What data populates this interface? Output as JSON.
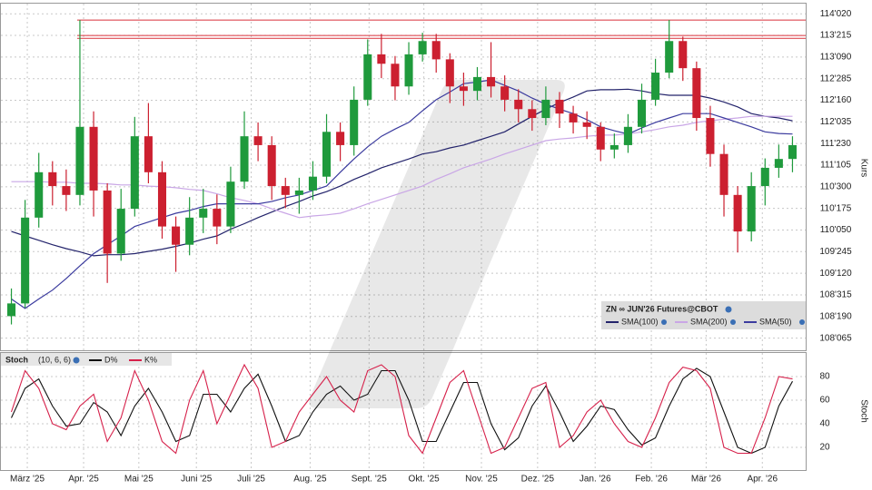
{
  "chart_data": [
    {
      "type": "candlestick",
      "legend_title": "ZN ∞ JUN'26 Futures@CBOT",
      "ylabel": "Kurs",
      "up_color": "#1f9a3c",
      "down_color": "#cc2030",
      "open": [
        108.6,
        108.83,
        110.38,
        111.2,
        110.95,
        110.79,
        112.02,
        110.87,
        109.73,
        110.54,
        111.85,
        111.2,
        110.22,
        109.89,
        110.38,
        110.54,
        110.22,
        111.03,
        111.85,
        111.69,
        110.95,
        110.79,
        110.87,
        111.12,
        111.93,
        111.69,
        112.51,
        113.33,
        113.16,
        112.75,
        113.33,
        113.57,
        113.24,
        112.75,
        112.67,
        112.92,
        112.75,
        112.51,
        112.34,
        112.18,
        112.51,
        112.26,
        112.1,
        112.02,
        111.61,
        111.69,
        112.02,
        112.51,
        113.0,
        113.57,
        113.08,
        112.18,
        111.53,
        110.79,
        110.13,
        110.95,
        111.28,
        111.44
      ],
      "high": [
        109.1,
        110.7,
        111.55,
        111.4,
        111.25,
        113.95,
        112.3,
        111.0,
        110.9,
        112.2,
        112.45,
        111.4,
        110.4,
        110.75,
        110.9,
        110.8,
        111.3,
        112.3,
        112.1,
        111.85,
        111.1,
        111.1,
        111.4,
        112.25,
        112.1,
        112.75,
        113.6,
        113.7,
        113.3,
        113.55,
        113.72,
        113.7,
        113.35,
        113.0,
        113.1,
        113.55,
        112.95,
        112.7,
        112.5,
        112.75,
        112.65,
        112.4,
        112.3,
        112.1,
        111.9,
        112.25,
        112.8,
        113.25,
        113.95,
        113.65,
        113.2,
        112.4,
        111.7,
        110.95,
        111.2,
        111.45,
        111.7,
        111.85
      ],
      "low": [
        108.45,
        108.75,
        110.2,
        110.6,
        110.5,
        110.6,
        110.4,
        109.2,
        109.6,
        110.4,
        111.0,
        110.0,
        109.4,
        109.7,
        110.1,
        109.9,
        110.1,
        110.9,
        111.4,
        110.7,
        110.55,
        110.45,
        110.7,
        111.0,
        111.4,
        111.5,
        112.4,
        112.9,
        112.5,
        112.6,
        113.2,
        113.0,
        112.45,
        112.4,
        112.5,
        112.55,
        112.3,
        112.1,
        111.95,
        112.05,
        112.0,
        111.9,
        111.8,
        111.4,
        111.45,
        111.55,
        111.9,
        112.4,
        112.9,
        112.85,
        111.95,
        111.3,
        110.4,
        109.75,
        109.95,
        110.6,
        111.1,
        111.2
      ],
      "close": [
        108.83,
        110.38,
        111.2,
        110.95,
        110.79,
        112.02,
        110.87,
        109.73,
        110.54,
        111.85,
        111.2,
        110.22,
        109.89,
        110.38,
        110.54,
        110.22,
        111.03,
        111.85,
        111.69,
        110.95,
        110.79,
        110.87,
        111.12,
        111.93,
        111.69,
        112.51,
        113.33,
        113.16,
        112.75,
        113.33,
        113.57,
        113.24,
        112.75,
        112.67,
        112.92,
        112.75,
        112.51,
        112.34,
        112.18,
        112.51,
        112.26,
        112.1,
        112.02,
        111.61,
        111.69,
        112.02,
        112.51,
        113.0,
        113.57,
        113.08,
        112.18,
        111.53,
        110.79,
        110.13,
        110.95,
        111.28,
        111.44,
        111.69
      ],
      "series": [
        {
          "name": "SMA(100)",
          "color": "#23236b",
          "values": [
            110.13,
            110.05,
            109.97,
            109.89,
            109.82,
            109.76,
            109.69,
            109.71,
            109.71,
            109.73,
            109.77,
            109.81,
            109.86,
            109.92,
            109.99,
            110.05,
            110.17,
            110.27,
            110.38,
            110.48,
            110.58,
            110.67,
            110.77,
            110.85,
            110.95,
            111.07,
            111.17,
            111.28,
            111.36,
            111.44,
            111.53,
            111.57,
            111.64,
            111.69,
            111.77,
            111.85,
            111.93,
            112.07,
            112.21,
            112.34,
            112.46,
            112.56,
            112.67,
            112.69,
            112.69,
            112.7,
            112.67,
            112.62,
            112.59,
            112.59,
            112.59,
            112.54,
            112.47,
            112.38,
            112.26,
            112.21,
            112.18,
            112.13
          ]
        },
        {
          "name": "SMA(200)",
          "color": "#c9a6e6",
          "values": [
            111.03,
            111.03,
            111.03,
            111.02,
            111.02,
            111.0,
            111.0,
            110.99,
            110.97,
            110.97,
            110.95,
            110.94,
            110.92,
            110.89,
            110.87,
            110.81,
            110.74,
            110.69,
            110.63,
            110.54,
            110.46,
            110.38,
            110.41,
            110.43,
            110.46,
            110.54,
            110.63,
            110.71,
            110.79,
            110.87,
            110.95,
            111.07,
            111.17,
            111.28,
            111.36,
            111.44,
            111.53,
            111.61,
            111.69,
            111.77,
            111.8,
            111.82,
            111.85,
            111.87,
            111.87,
            111.89,
            111.93,
            111.97,
            112.02,
            112.05,
            112.1,
            112.13,
            112.16,
            112.18,
            112.21,
            112.21,
            112.21,
            112.21
          ]
        },
        {
          "name": "SMA(50)",
          "color": "#3b3b9e",
          "values": [
            108.91,
            108.74,
            108.91,
            109.07,
            109.28,
            109.51,
            109.73,
            109.89,
            110.05,
            110.22,
            110.3,
            110.38,
            110.46,
            110.51,
            110.58,
            110.63,
            110.63,
            110.63,
            110.63,
            110.67,
            110.74,
            110.79,
            110.87,
            110.95,
            111.2,
            111.44,
            111.66,
            111.85,
            111.98,
            112.1,
            112.31,
            112.51,
            112.65,
            112.8,
            112.83,
            112.87,
            112.77,
            112.67,
            112.54,
            112.43,
            112.34,
            112.26,
            112.15,
            112.02,
            111.95,
            111.89,
            112.0,
            112.1,
            112.18,
            112.26,
            112.26,
            112.26,
            112.18,
            112.1,
            112.02,
            111.93,
            111.9,
            111.89
          ]
        }
      ],
      "hlines": [
        {
          "value": 113.95,
          "color": "#d9303a"
        },
        {
          "value": 113.67,
          "color": "#d9303a"
        },
        {
          "value": 113.62,
          "color": "#d9303a"
        }
      ],
      "xlim": [
        -0.5,
        57.5
      ],
      "ylim": [
        108.0,
        114.23
      ],
      "yticks": [
        {
          "value": 114.0625,
          "label": "114'020"
        },
        {
          "value": 113.671875,
          "label": "113'215"
        },
        {
          "value": 113.28125,
          "label": "113'090"
        },
        {
          "value": 112.890625,
          "label": "112'285"
        },
        {
          "value": 112.5,
          "label": "112'160"
        },
        {
          "value": 112.109375,
          "label": "112'035"
        },
        {
          "value": 111.71875,
          "label": "111'230"
        },
        {
          "value": 111.328125,
          "label": "111'105"
        },
        {
          "value": 110.9375,
          "label": "110'300"
        },
        {
          "value": 110.546875,
          "label": "110'175"
        },
        {
          "value": 110.15625,
          "label": "110'050"
        },
        {
          "value": 109.765625,
          "label": "109'245"
        },
        {
          "value": 109.375,
          "label": "109'120"
        },
        {
          "value": 108.984375,
          "label": "108'315"
        },
        {
          "value": 108.59375,
          "label": "108'190"
        },
        {
          "value": 108.203125,
          "label": "108'065"
        }
      ],
      "grid": true
    },
    {
      "type": "line",
      "title": "Stoch",
      "subtitle": "(10, 6, 6)",
      "ylabel": "Stoch",
      "series": [
        {
          "name": "D%",
          "color": "#111111",
          "values": [
            45,
            70,
            78,
            55,
            38,
            40,
            58,
            50,
            30,
            55,
            70,
            50,
            25,
            30,
            65,
            65,
            50,
            70,
            82,
            55,
            25,
            30,
            50,
            65,
            72,
            60,
            65,
            85,
            85,
            60,
            25,
            25,
            50,
            75,
            75,
            40,
            18,
            28,
            55,
            72,
            50,
            25,
            38,
            55,
            52,
            35,
            22,
            28,
            55,
            78,
            87,
            80,
            50,
            20,
            15,
            20,
            55,
            76
          ]
        },
        {
          "name": "K%",
          "color": "#d6204a",
          "values": [
            50,
            85,
            70,
            40,
            35,
            55,
            65,
            25,
            45,
            85,
            60,
            25,
            15,
            60,
            85,
            40,
            65,
            90,
            70,
            20,
            25,
            50,
            65,
            80,
            60,
            50,
            85,
            90,
            80,
            30,
            15,
            45,
            75,
            85,
            50,
            15,
            20,
            45,
            70,
            75,
            20,
            30,
            50,
            60,
            40,
            25,
            20,
            45,
            75,
            88,
            85,
            70,
            20,
            15,
            15,
            45,
            80,
            78
          ]
        }
      ],
      "xlim": [
        -0.5,
        57.5
      ],
      "xticks": [
        {
          "value": 1.16,
          "label": "März '25"
        },
        {
          "value": 5.27,
          "label": "Apr. '25"
        },
        {
          "value": 9.3,
          "label": "Mai '25"
        },
        {
          "value": 13.5,
          "label": "Juni '25"
        },
        {
          "value": 17.5,
          "label": "Juli '25"
        },
        {
          "value": 21.8,
          "label": "Aug. '25"
        },
        {
          "value": 26.1,
          "label": "Sept. '25"
        },
        {
          "value": 30.1,
          "label": "Okt. '25"
        },
        {
          "value": 34.3,
          "label": "Nov. '25"
        },
        {
          "value": 38.4,
          "label": "Dez. '25"
        },
        {
          "value": 42.6,
          "label": "Jan. '26"
        },
        {
          "value": 46.7,
          "label": "Feb. '26"
        },
        {
          "value": 50.7,
          "label": "Mär '26"
        },
        {
          "value": 54.8,
          "label": "Apr. '26"
        }
      ],
      "ylim": [
        0,
        100
      ],
      "yticks": [
        20,
        40,
        60,
        80
      ],
      "grid": true
    }
  ]
}
